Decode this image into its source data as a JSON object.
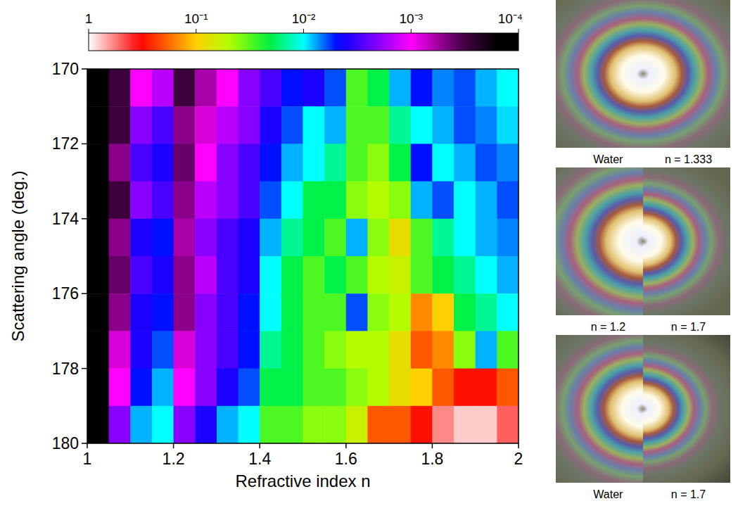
{
  "chart_data": {
    "type": "heatmap",
    "xlabel": "Refractive index n",
    "ylabel": "Scattering angle (deg.)",
    "x": [
      1.025,
      1.075,
      1.125,
      1.175,
      1.225,
      1.275,
      1.325,
      1.375,
      1.425,
      1.475,
      1.525,
      1.575,
      1.625,
      1.675,
      1.725,
      1.775,
      1.825,
      1.875,
      1.925,
      1.975
    ],
    "y": [
      170.5,
      171.5,
      172.5,
      173.5,
      174.5,
      175.5,
      176.5,
      177.5,
      178.5,
      179.5
    ],
    "xlim": [
      1,
      2
    ],
    "ylim": [
      180,
      170
    ],
    "xticks": [
      1,
      1.2,
      1.4,
      1.6,
      1.8,
      2
    ],
    "yticks": [
      180,
      178,
      176,
      174,
      172,
      170
    ],
    "cells": [
      [
        0.0001,
        0.0003,
        0.001,
        0.0015,
        0.0003,
        0.0006,
        0.001,
        0.002,
        0.003,
        0.005,
        0.004,
        0.006,
        0.03,
        0.02,
        0.008,
        0.005,
        0.007,
        0.006,
        0.008,
        0.01
      ],
      [
        0.0001,
        0.0003,
        0.002,
        0.003,
        0.0005,
        0.0008,
        0.0015,
        0.002,
        0.004,
        0.006,
        0.01,
        0.008,
        0.03,
        0.03,
        0.015,
        0.01,
        0.008,
        0.006,
        0.007,
        0.009
      ],
      [
        0.0001,
        0.0005,
        0.003,
        0.004,
        0.0004,
        0.001,
        0.002,
        0.003,
        0.005,
        0.008,
        0.01,
        0.015,
        0.03,
        0.04,
        0.02,
        0.005,
        0.01,
        0.008,
        0.006,
        0.007
      ],
      [
        0.0001,
        0.0003,
        0.002,
        0.003,
        0.0005,
        0.0015,
        0.002,
        0.003,
        0.006,
        0.01,
        0.02,
        0.02,
        0.04,
        0.05,
        0.04,
        0.008,
        0.006,
        0.01,
        0.008,
        0.006
      ],
      [
        0.0001,
        0.0005,
        0.004,
        0.005,
        0.0006,
        0.002,
        0.003,
        0.004,
        0.008,
        0.015,
        0.02,
        0.03,
        0.008,
        0.04,
        0.08,
        0.03,
        0.015,
        0.01,
        0.008,
        0.007
      ],
      [
        0.0001,
        0.0004,
        0.003,
        0.004,
        0.0005,
        0.0015,
        0.003,
        0.004,
        0.01,
        0.02,
        0.03,
        0.02,
        0.03,
        0.05,
        0.06,
        0.03,
        0.02,
        0.015,
        0.01,
        0.008
      ],
      [
        0.0001,
        0.0005,
        0.004,
        0.005,
        0.0005,
        0.002,
        0.003,
        0.005,
        0.01,
        0.02,
        0.03,
        0.03,
        0.006,
        0.04,
        0.05,
        0.15,
        0.1,
        0.02,
        0.015,
        0.01
      ],
      [
        0.0001,
        0.0008,
        0.004,
        0.006,
        0.0008,
        0.002,
        0.003,
        0.005,
        0.015,
        0.02,
        0.03,
        0.04,
        0.05,
        0.05,
        0.08,
        0.2,
        0.15,
        0.04,
        0.008,
        0.03
      ],
      [
        0.0001,
        0.001,
        0.005,
        0.008,
        0.001,
        0.002,
        0.004,
        0.006,
        0.02,
        0.02,
        0.03,
        0.03,
        0.04,
        0.05,
        0.08,
        0.1,
        0.2,
        0.3,
        0.3,
        0.2
      ],
      [
        0.0001,
        0.002,
        0.008,
        0.01,
        0.002,
        0.004,
        0.008,
        0.01,
        0.03,
        0.03,
        0.04,
        0.04,
        0.06,
        0.2,
        0.2,
        0.3,
        0.6,
        0.8,
        0.8,
        0.5
      ]
    ],
    "colorbar": {
      "range": [
        1,
        0.0001
      ],
      "log": true,
      "ticks": [
        1,
        {
          "value": 0.1,
          "label": "10⁻¹"
        },
        {
          "value": 0.01,
          "label": "10⁻²"
        },
        {
          "value": 0.001,
          "label": "10⁻³"
        },
        {
          "value": 0.0001,
          "label": "10⁻⁴"
        }
      ]
    }
  },
  "panels": [
    {
      "left": "Water",
      "right": "n = 1.333"
    },
    {
      "left": "n = 1.2",
      "right": "n = 1.7"
    },
    {
      "left": "Water",
      "right": "n = 1.7"
    }
  ]
}
